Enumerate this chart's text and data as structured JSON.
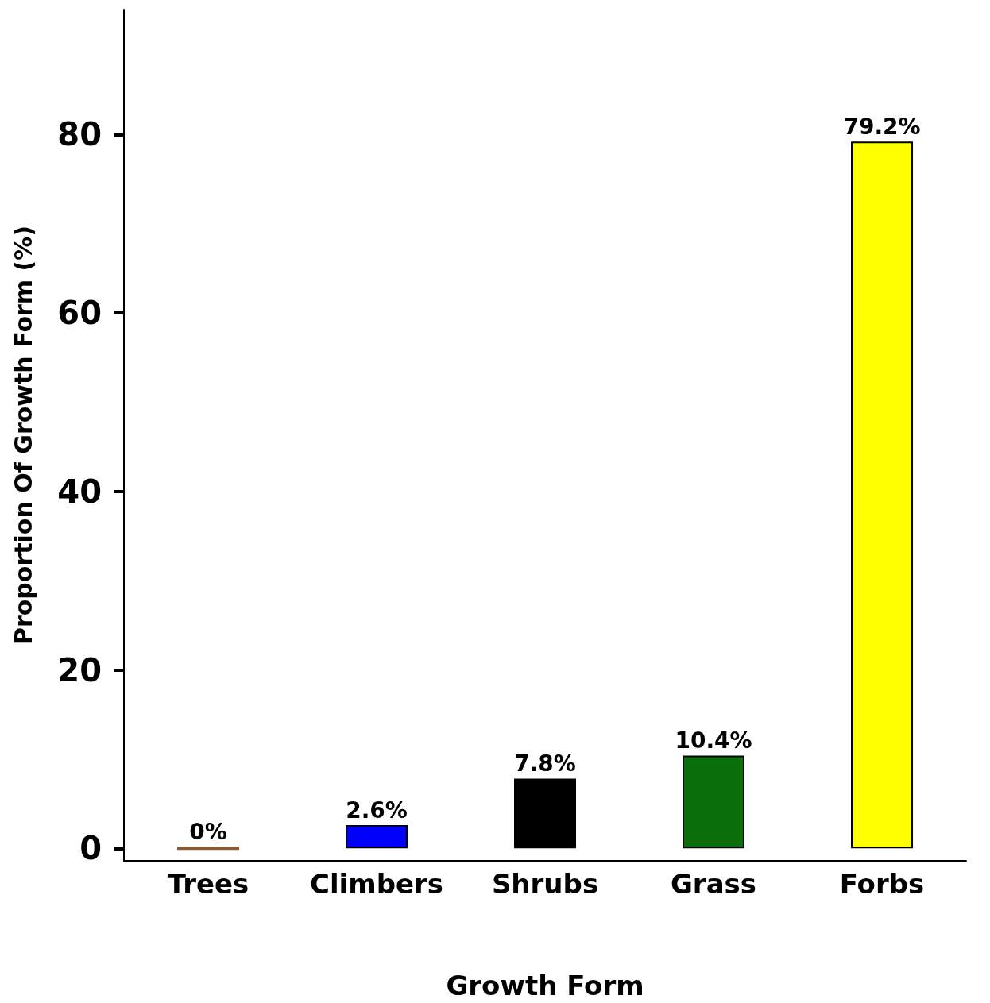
{
  "chart_data": {
    "type": "bar",
    "xlabel": "Growth Form",
    "ylabel": "Proportion Of Growth Form (%)",
    "categories": [
      "Trees",
      "Climbers",
      "Shrubs",
      "Grass",
      "Forbs"
    ],
    "values": [
      0,
      2.6,
      7.8,
      10.4,
      79.2
    ],
    "colors": [
      "#8b5a2b",
      "#0000ff",
      "#000000",
      "#0a6e0a",
      "#ffff00"
    ],
    "value_labels": [
      "0%",
      "2.6%",
      "7.8%",
      "10.4%",
      "79.2%"
    ],
    "ylim": [
      -1.4,
      94
    ],
    "yticks": [
      0,
      20,
      40,
      60,
      80
    ],
    "grid": false
  }
}
